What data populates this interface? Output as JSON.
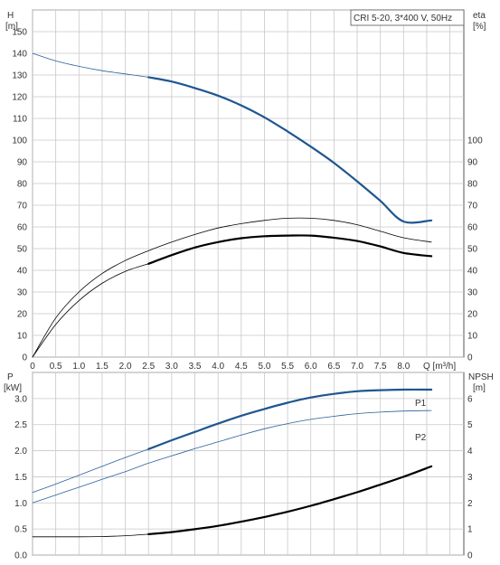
{
  "chart_data": [
    {
      "type": "line",
      "title": "CRI 5-20, 3*400 V, 50Hz",
      "xlabel": "Q [m³/h]",
      "x_ticks": [
        "0",
        "0.5",
        "1.0",
        "1.5",
        "2.0",
        "2.5",
        "3.0",
        "3.5",
        "4.0",
        "4.5",
        "5.0",
        "5.5",
        "6.0",
        "6.5",
        "7.0",
        "7.5",
        "8.0"
      ],
      "xlim": [
        0,
        9.3
      ],
      "y_left": {
        "label_top": "H",
        "label_unit": "[m]",
        "ylim": [
          0,
          160
        ],
        "ticks": [
          "0",
          "10",
          "20",
          "30",
          "40",
          "50",
          "60",
          "70",
          "80",
          "90",
          "100",
          "110",
          "120",
          "130",
          "140",
          "150"
        ]
      },
      "y_right": {
        "label_top": "eta",
        "label_unit": "[%]",
        "ylim": [
          0,
          160
        ],
        "ticks": [
          "0",
          "10",
          "20",
          "30",
          "40",
          "50",
          "60",
          "70",
          "80",
          "90",
          "100"
        ]
      },
      "grid": true,
      "series": [
        {
          "axis": "left",
          "color": "#2a5f9a",
          "x": [
            0,
            0.5,
            1,
            1.5,
            2,
            2.5
          ],
          "y": [
            140,
            136.5,
            134,
            132,
            130.5,
            129
          ],
          "width": 0.8
        },
        {
          "axis": "left",
          "color": "#1f5690",
          "x": [
            2.5,
            3,
            3.5,
            4,
            4.5,
            5,
            5.5,
            6,
            6.5,
            7,
            7.5,
            8,
            8.6
          ],
          "y": [
            129,
            127,
            124,
            120.5,
            116,
            110.5,
            104,
            97,
            89.5,
            81,
            72,
            62.5,
            63
          ],
          "width": 2.2
        },
        {
          "axis": "right",
          "color": "#000000",
          "x": [
            0,
            0.5,
            1,
            1.5,
            2,
            2.5,
            3,
            3.5,
            4,
            4.5,
            5,
            5.5,
            6,
            6.5,
            7,
            7.5,
            8,
            8.6
          ],
          "y": [
            0,
            18,
            30,
            38.5,
            44.5,
            49,
            53,
            56.5,
            59.5,
            61.5,
            63,
            64,
            64,
            63,
            61,
            58,
            55,
            53
          ],
          "width": 0.8
        },
        {
          "axis": "right",
          "color": "#000000",
          "x": [
            0,
            0.5,
            1,
            1.5,
            2,
            2.5
          ],
          "y": [
            0,
            15,
            26,
            34,
            39.5,
            43
          ],
          "width": 0.8
        },
        {
          "axis": "right",
          "color": "#000000",
          "x": [
            2.5,
            3,
            3.5,
            4,
            4.5,
            5,
            5.5,
            6,
            6.5,
            7,
            7.5,
            8,
            8.6
          ],
          "y": [
            43,
            47,
            50.5,
            53,
            54.8,
            55.7,
            56,
            56,
            55,
            53.5,
            51,
            48,
            46.5
          ],
          "width": 2.2
        }
      ]
    },
    {
      "type": "line",
      "xlabel": "",
      "xlim": [
        0,
        9.3
      ],
      "y_left": {
        "label_top": "P",
        "label_unit": "[kW]",
        "ylim": [
          0,
          3.5
        ],
        "ticks": [
          "0.0",
          "0.5",
          "1.0",
          "1.5",
          "2.0",
          "2.5",
          "3.0"
        ]
      },
      "y_right": {
        "label_top": "NPSH",
        "label_unit": "[m]",
        "ylim": [
          0,
          7
        ],
        "ticks": [
          "0",
          "1",
          "2",
          "3",
          "4",
          "5",
          "6"
        ]
      },
      "grid": true,
      "series": [
        {
          "name": "P1",
          "axis": "left",
          "color": "#2a5f9a",
          "x": [
            0,
            0.5,
            1,
            1.5,
            2,
            2.5
          ],
          "y": [
            1.2,
            1.36,
            1.53,
            1.7,
            1.87,
            2.03
          ],
          "width": 0.8
        },
        {
          "name": "P1",
          "axis": "left",
          "color": "#1f5690",
          "x": [
            2.5,
            3,
            3.5,
            4,
            4.5,
            5,
            5.5,
            6,
            6.5,
            7,
            7.5,
            8,
            8.6
          ],
          "y": [
            2.03,
            2.2,
            2.36,
            2.52,
            2.67,
            2.8,
            2.92,
            3.02,
            3.09,
            3.14,
            3.16,
            3.17,
            3.17
          ],
          "width": 2.2,
          "label_visible": true
        },
        {
          "name": "P2",
          "axis": "left",
          "color": "#2a5f9a",
          "x": [
            0,
            0.5,
            1,
            1.5,
            2,
            2.5,
            3,
            3.5,
            4,
            4.5,
            5,
            5.5,
            6,
            6.5,
            7,
            7.5,
            8,
            8.6
          ],
          "y": [
            1.0,
            1.15,
            1.3,
            1.45,
            1.6,
            1.76,
            1.9,
            2.04,
            2.17,
            2.3,
            2.42,
            2.52,
            2.6,
            2.66,
            2.71,
            2.74,
            2.76,
            2.77
          ],
          "width": 0.8,
          "label_visible": true
        },
        {
          "axis": "right",
          "color": "#000000",
          "x": [
            0,
            0.5,
            1,
            1.5,
            2,
            2.5
          ],
          "y": [
            0.7,
            0.7,
            0.7,
            0.71,
            0.74,
            0.8
          ],
          "width": 0.8
        },
        {
          "axis": "right",
          "color": "#000000",
          "x": [
            2.5,
            3,
            3.5,
            4,
            4.5,
            5,
            5.5,
            6,
            6.5,
            7,
            7.5,
            8,
            8.6
          ],
          "y": [
            0.8,
            0.88,
            0.99,
            1.12,
            1.28,
            1.46,
            1.66,
            1.89,
            2.14,
            2.41,
            2.7,
            3.0,
            3.4
          ],
          "width": 2.2
        }
      ]
    }
  ]
}
